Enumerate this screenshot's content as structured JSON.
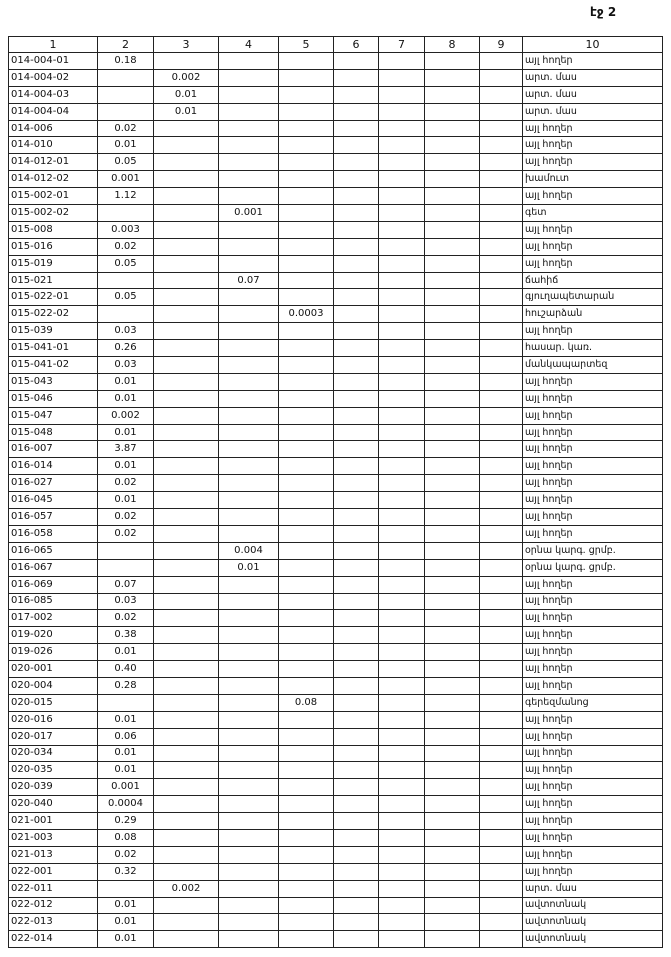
{
  "header": {
    "page": "էջ 2"
  },
  "table": {
    "columns": [
      "1",
      "2",
      "3",
      "4",
      "5",
      "6",
      "7",
      "8",
      "9",
      "10"
    ],
    "rows": [
      [
        "014-004-01",
        "0.18",
        null,
        null,
        null,
        null,
        null,
        null,
        null,
        "այլ հողեր"
      ],
      [
        "014-004-02",
        null,
        "0.002",
        null,
        null,
        null,
        null,
        null,
        null,
        "արտ. մաս"
      ],
      [
        "014-004-03",
        null,
        "0.01",
        null,
        null,
        null,
        null,
        null,
        null,
        "արտ. մաս"
      ],
      [
        "014-004-04",
        null,
        "0.01",
        null,
        null,
        null,
        null,
        null,
        null,
        "արտ. մաս"
      ],
      [
        "014-006",
        "0.02",
        null,
        null,
        null,
        null,
        null,
        null,
        null,
        "այլ հողեր"
      ],
      [
        "014-010",
        "0.01",
        null,
        null,
        null,
        null,
        null,
        null,
        null,
        "այլ հողեր"
      ],
      [
        "014-012-01",
        "0.05",
        null,
        null,
        null,
        null,
        null,
        null,
        null,
        "այլ հողեր"
      ],
      [
        "014-012-02",
        "0.001",
        null,
        null,
        null,
        null,
        null,
        null,
        null,
        "խամուտ"
      ],
      [
        "015-002-01",
        "1.12",
        null,
        null,
        null,
        null,
        null,
        null,
        null,
        "այլ հողեր"
      ],
      [
        "015-002-02",
        null,
        null,
        "0.001",
        null,
        null,
        null,
        null,
        null,
        "գետ"
      ],
      [
        "015-008",
        "0.003",
        null,
        null,
        null,
        null,
        null,
        null,
        null,
        "այլ հողեր"
      ],
      [
        "015-016",
        "0.02",
        null,
        null,
        null,
        null,
        null,
        null,
        null,
        "այլ հողեր"
      ],
      [
        "015-019",
        "0.05",
        null,
        null,
        null,
        null,
        null,
        null,
        null,
        "այլ հողեր"
      ],
      [
        "015-021",
        null,
        null,
        "0.07",
        null,
        null,
        null,
        null,
        null,
        "ճահիճ"
      ],
      [
        "015-022-01",
        "0.05",
        null,
        null,
        null,
        null,
        null,
        null,
        null,
        "գյուղապետարան"
      ],
      [
        "015-022-02",
        null,
        null,
        null,
        "0.0003",
        null,
        null,
        null,
        null,
        "հուշարձան"
      ],
      [
        "015-039",
        "0.03",
        null,
        null,
        null,
        null,
        null,
        null,
        null,
        "այլ հողեր"
      ],
      [
        "015-041-01",
        "0.26",
        null,
        null,
        null,
        null,
        null,
        null,
        null,
        "հասար. կառ."
      ],
      [
        "015-041-02",
        "0.03",
        null,
        null,
        null,
        null,
        null,
        null,
        null,
        "մանկապարտեզ"
      ],
      [
        "015-043",
        "0.01",
        null,
        null,
        null,
        null,
        null,
        null,
        null,
        "այլ հողեր"
      ],
      [
        "015-046",
        "0.01",
        null,
        null,
        null,
        null,
        null,
        null,
        null,
        "այլ հողեր"
      ],
      [
        "015-047",
        "0.002",
        null,
        null,
        null,
        null,
        null,
        null,
        null,
        "այլ հողեր"
      ],
      [
        "015-048",
        "0.01",
        null,
        null,
        null,
        null,
        null,
        null,
        null,
        "այլ հողեր"
      ],
      [
        "016-007",
        "3.87",
        null,
        null,
        null,
        null,
        null,
        null,
        null,
        "այլ հողեր"
      ],
      [
        "016-014",
        "0.01",
        null,
        null,
        null,
        null,
        null,
        null,
        null,
        "այլ հողեր"
      ],
      [
        "016-027",
        "0.02",
        null,
        null,
        null,
        null,
        null,
        null,
        null,
        "այլ հողեր"
      ],
      [
        "016-045",
        "0.01",
        null,
        null,
        null,
        null,
        null,
        null,
        null,
        "այլ հողեր"
      ],
      [
        "016-057",
        "0.02",
        null,
        null,
        null,
        null,
        null,
        null,
        null,
        "այլ հողեր"
      ],
      [
        "016-058",
        "0.02",
        null,
        null,
        null,
        null,
        null,
        null,
        null,
        "այլ հողեր"
      ],
      [
        "016-065",
        null,
        null,
        "0.004",
        null,
        null,
        null,
        null,
        null,
        "օրնա կարգ. ցրմբ."
      ],
      [
        "016-067",
        null,
        null,
        "0.01",
        null,
        null,
        null,
        null,
        null,
        "օրնա կարգ. ցրմբ."
      ],
      [
        "016-069",
        "0.07",
        null,
        null,
        null,
        null,
        null,
        null,
        null,
        "այլ հողեր"
      ],
      [
        "016-085",
        "0.03",
        null,
        null,
        null,
        null,
        null,
        null,
        null,
        "այլ հողեր"
      ],
      [
        "017-002",
        "0.02",
        null,
        null,
        null,
        null,
        null,
        null,
        null,
        "այլ հողեր"
      ],
      [
        "019-020",
        "0.38",
        null,
        null,
        null,
        null,
        null,
        null,
        null,
        "այլ հողեր"
      ],
      [
        "019-026",
        "0.01",
        null,
        null,
        null,
        null,
        null,
        null,
        null,
        "այլ հողեր"
      ],
      [
        "020-001",
        "0.40",
        null,
        null,
        null,
        null,
        null,
        null,
        null,
        "այլ հողեր"
      ],
      [
        "020-004",
        "0.28",
        null,
        null,
        null,
        null,
        null,
        null,
        null,
        "այլ հողեր"
      ],
      [
        "020-015",
        null,
        null,
        null,
        "0.08",
        null,
        null,
        null,
        null,
        "գերեզմանոց"
      ],
      [
        "020-016",
        "0.01",
        null,
        null,
        null,
        null,
        null,
        null,
        null,
        "այլ հողեր"
      ],
      [
        "020-017",
        "0.06",
        null,
        null,
        null,
        null,
        null,
        null,
        null,
        "այլ հողեր"
      ],
      [
        "020-034",
        "0.01",
        null,
        null,
        null,
        null,
        null,
        null,
        null,
        "այլ հողեր"
      ],
      [
        "020-035",
        "0.01",
        null,
        null,
        null,
        null,
        null,
        null,
        null,
        "այլ հողեր"
      ],
      [
        "020-039",
        "0.001",
        null,
        null,
        null,
        null,
        null,
        null,
        null,
        "այլ հողեր"
      ],
      [
        "020-040",
        "0.0004",
        null,
        null,
        null,
        null,
        null,
        null,
        null,
        "այլ հողեր"
      ],
      [
        "021-001",
        "0.29",
        null,
        null,
        null,
        null,
        null,
        null,
        null,
        "այլ հողեր"
      ],
      [
        "021-003",
        "0.08",
        null,
        null,
        null,
        null,
        null,
        null,
        null,
        "այլ հողեր"
      ],
      [
        "021-013",
        "0.02",
        null,
        null,
        null,
        null,
        null,
        null,
        null,
        "այլ հողեր"
      ],
      [
        "022-001",
        "0.32",
        null,
        null,
        null,
        null,
        null,
        null,
        null,
        "այլ հողեր"
      ],
      [
        "022-011",
        null,
        "0.002",
        null,
        null,
        null,
        null,
        null,
        null,
        "արտ. մաս"
      ],
      [
        "022-012",
        "0.01",
        null,
        null,
        null,
        null,
        null,
        null,
        null,
        "ավտոտնակ"
      ],
      [
        "022-013",
        "0.01",
        null,
        null,
        null,
        null,
        null,
        null,
        null,
        "ավտոտնակ"
      ],
      [
        "022-014",
        "0.01",
        null,
        null,
        null,
        null,
        null,
        null,
        null,
        "ավտոտնակ"
      ]
    ]
  }
}
